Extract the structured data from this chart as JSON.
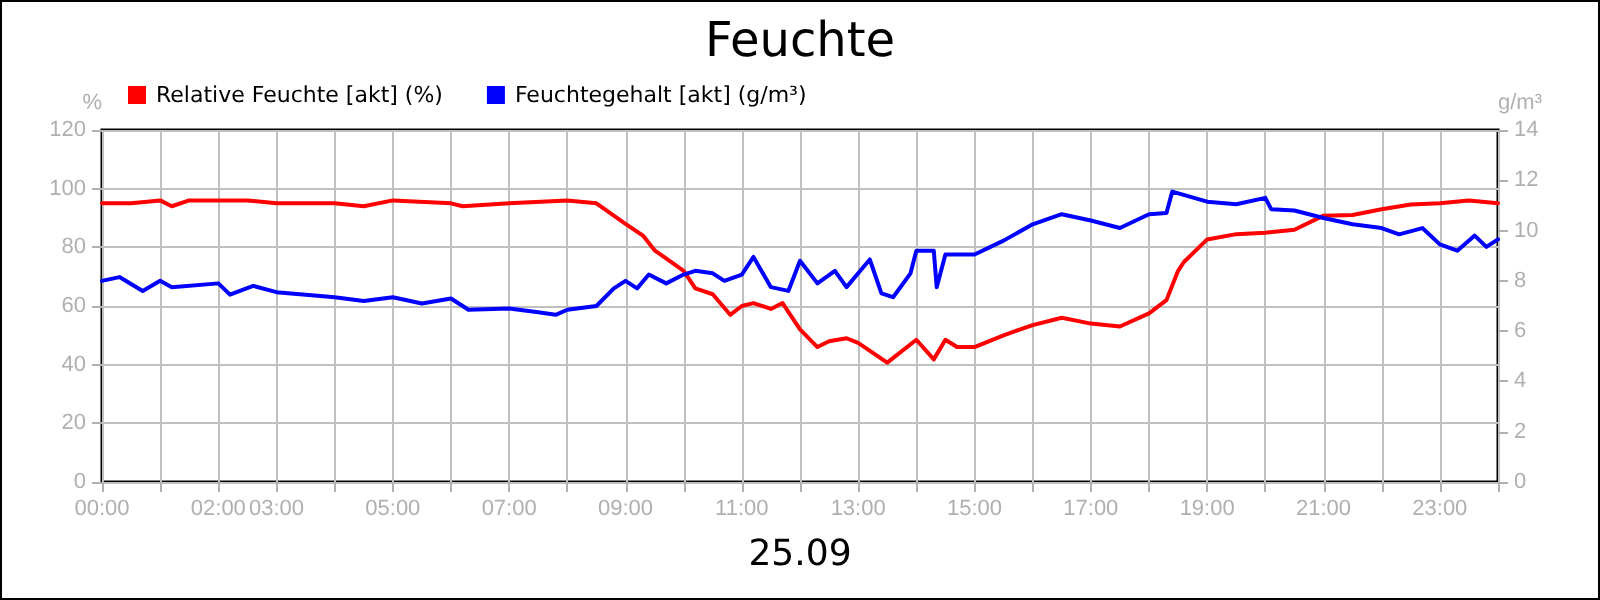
{
  "chart_data": {
    "type": "line",
    "title": "Feuchte",
    "xlabel": "25.09",
    "ylabel": "%",
    "y2label": "g/m³",
    "legend": "top left",
    "grid": true,
    "marker": "none",
    "line_style": "solid",
    "xlim": [
      0,
      24
    ],
    "xticks": [
      {
        "value": 0,
        "label": "00:00"
      },
      {
        "value": 1,
        "label": null
      },
      {
        "value": 2,
        "label": "02:00"
      },
      {
        "value": 3,
        "label": "03:00"
      },
      {
        "value": 4,
        "label": null
      },
      {
        "value": 5,
        "label": "05:00"
      },
      {
        "value": 6,
        "label": null
      },
      {
        "value": 7,
        "label": "07:00"
      },
      {
        "value": 8,
        "label": null
      },
      {
        "value": 9,
        "label": "09:00"
      },
      {
        "value": 10,
        "label": null
      },
      {
        "value": 11,
        "label": "11:00"
      },
      {
        "value": 12,
        "label": null
      },
      {
        "value": 13,
        "label": "13:00"
      },
      {
        "value": 14,
        "label": null
      },
      {
        "value": 15,
        "label": "15:00"
      },
      {
        "value": 16,
        "label": null
      },
      {
        "value": 17,
        "label": "17:00"
      },
      {
        "value": 18,
        "label": null
      },
      {
        "value": 19,
        "label": "19:00"
      },
      {
        "value": 20,
        "label": null
      },
      {
        "value": 21,
        "label": "21:00"
      },
      {
        "value": 22,
        "label": null
      },
      {
        "value": 23,
        "label": "23:00"
      },
      {
        "value": 24,
        "label": null
      }
    ],
    "ylim": [
      0,
      120
    ],
    "yticks": [
      0,
      20,
      40,
      60,
      80,
      100,
      120
    ],
    "y2lim": [
      0,
      14
    ],
    "y2ticks": [
      0,
      2,
      4,
      6,
      8,
      10,
      12,
      14
    ],
    "series": [
      {
        "name": "Relative Feuchte [akt] (%)",
        "color": "#ff0000",
        "x": [
          0,
          0.5,
          1,
          1.2,
          1.5,
          2,
          2.5,
          3,
          4,
          4.5,
          5,
          6,
          6.2,
          7,
          8,
          8.5,
          9,
          9.3,
          9.5,
          10,
          10.2,
          10.5,
          10.8,
          11,
          11.2,
          11.5,
          11.7,
          12,
          12.3,
          12.5,
          12.8,
          13,
          13.5,
          14,
          14.3,
          14.5,
          14.7,
          15,
          15.5,
          16,
          16.5,
          17,
          17.5,
          18,
          18.3,
          18.5,
          18.6,
          19,
          19.5,
          20,
          20.5,
          21,
          21.5,
          22,
          22.5,
          23,
          23.5,
          24
        ],
        "values": [
          95,
          95,
          96,
          94,
          96,
          96,
          96,
          95,
          95,
          94,
          96,
          95,
          94,
          95,
          96,
          95,
          88,
          84,
          79,
          72,
          66,
          64,
          57,
          60,
          61,
          59,
          61,
          52,
          46,
          48,
          49,
          47.4,
          40.7,
          48.5,
          41.8,
          48.5,
          46,
          46,
          50,
          53.5,
          56,
          54,
          53,
          57.5,
          62,
          72,
          75,
          82.7,
          84.5,
          85,
          86,
          90.8,
          91,
          93,
          94.6,
          95,
          96,
          95
        ]
      },
      {
        "name": "Feuchtegehalt [akt] (g/m³)",
        "color": "#0000ff",
        "axis": "y2",
        "x": [
          0,
          0.3,
          0.7,
          1,
          1.2,
          2,
          2.2,
          2.6,
          3,
          3.5,
          4,
          4.5,
          5,
          5.5,
          6,
          6.3,
          7,
          7.5,
          7.8,
          8,
          8.5,
          8.8,
          9,
          9.2,
          9.4,
          9.7,
          10,
          10.2,
          10.5,
          10.7,
          11,
          11.2,
          11.5,
          11.8,
          12,
          12.3,
          12.6,
          12.8,
          13,
          13.2,
          13.4,
          13.6,
          13.9,
          14,
          14.3,
          14.35,
          14.5,
          15,
          15.5,
          16,
          16.5,
          17,
          17.5,
          18,
          18.3,
          18.4,
          19,
          19.5,
          20,
          20.1,
          20.5,
          21,
          21.5,
          22,
          22.3,
          22.7,
          23,
          23.3,
          23.6,
          23.8,
          24
        ],
        "values": [
          8.0,
          8.15,
          7.6,
          8.0,
          7.75,
          7.9,
          7.45,
          7.8,
          7.55,
          7.45,
          7.35,
          7.2,
          7.35,
          7.1,
          7.3,
          6.85,
          6.9,
          6.75,
          6.65,
          6.85,
          7.0,
          7.7,
          8.0,
          7.7,
          8.25,
          7.9,
          8.25,
          8.4,
          8.3,
          8.0,
          8.25,
          8.95,
          7.75,
          7.6,
          8.8,
          7.9,
          8.4,
          7.75,
          8.3,
          8.85,
          7.5,
          7.35,
          8.3,
          9.2,
          9.2,
          7.75,
          9.05,
          9.05,
          9.6,
          10.25,
          10.65,
          10.4,
          10.1,
          10.65,
          10.7,
          11.55,
          11.15,
          11.05,
          11.3,
          10.85,
          10.8,
          10.5,
          10.25,
          10.1,
          9.85,
          10.1,
          9.45,
          9.2,
          9.8,
          9.35,
          9.65
        ]
      }
    ]
  }
}
